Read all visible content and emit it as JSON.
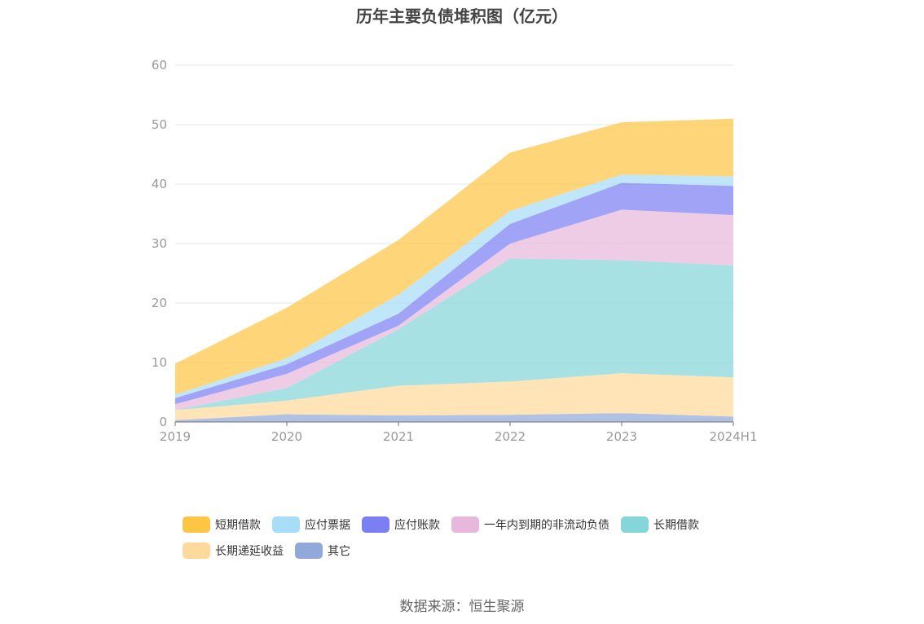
{
  "chart_data": {
    "type": "area",
    "stacked": true,
    "title": "历年主要负债堆积图（亿元）",
    "xlabel": "",
    "ylabel": "",
    "categories": [
      "2019",
      "2020",
      "2021",
      "2022",
      "2023",
      "2024H1"
    ],
    "ylim": [
      0,
      60
    ],
    "yticks": [
      0,
      10,
      20,
      30,
      40,
      50,
      60
    ],
    "grid": true,
    "legend_position": "bottom",
    "series": [
      {
        "name": "其它",
        "color": "#91a9d9",
        "values": [
          0.3,
          1.3,
          1.1,
          1.2,
          1.5,
          0.9
        ]
      },
      {
        "name": "长期递延收益",
        "color": "#fdd99b",
        "values": [
          1.7,
          2.3,
          5.0,
          5.6,
          6.7,
          6.6
        ]
      },
      {
        "name": "长期借款",
        "color": "#86d5d9",
        "values": [
          0.0,
          2.1,
          9.5,
          20.7,
          19.0,
          18.8
        ]
      },
      {
        "name": "一年内到期的非流动负债",
        "color": "#e8b8dc",
        "values": [
          1.0,
          2.4,
          0.6,
          2.5,
          8.5,
          8.5
        ]
      },
      {
        "name": "应付账款",
        "color": "#7b7ff2",
        "values": [
          1.0,
          1.6,
          2.0,
          3.3,
          4.5,
          4.9
        ]
      },
      {
        "name": "应付票据",
        "color": "#a8ddf7",
        "values": [
          0.6,
          1.0,
          3.2,
          2.2,
          1.4,
          1.6
        ]
      },
      {
        "name": "短期借款",
        "color": "#fdc544",
        "values": [
          5.2,
          8.5,
          9.2,
          9.8,
          8.8,
          9.7
        ]
      }
    ],
    "legend_order": [
      "短期借款",
      "应付票据",
      "应付账款",
      "一年内到期的非流动负债",
      "长期借款",
      "长期递延收益",
      "其它"
    ]
  },
  "source_text": "数据来源：恒生聚源"
}
